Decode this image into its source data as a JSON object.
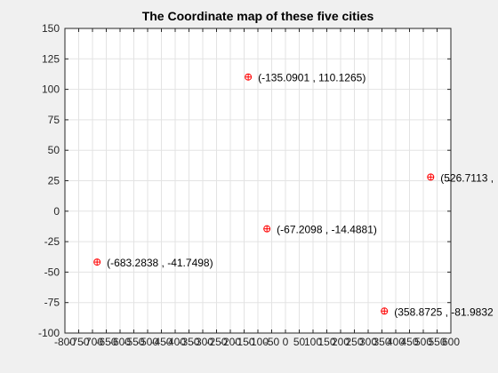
{
  "chart_data": {
    "type": "scatter",
    "title": "The Coordinate map of these five cities",
    "xlabel": "",
    "ylabel": "",
    "xlim": [
      -800,
      600
    ],
    "ylim": [
      -100,
      150
    ],
    "grid": true,
    "x_ticks": [
      -800,
      -750,
      -700,
      -650,
      -600,
      -550,
      -500,
      -450,
      -400,
      -350,
      -300,
      -250,
      -200,
      -150,
      -100,
      -50,
      0,
      50,
      100,
      150,
      200,
      250,
      300,
      350,
      400,
      450,
      500,
      550,
      600
    ],
    "x_tick_labels": [
      "-800",
      "-750",
      "-700",
      "-650",
      "-600",
      "-550",
      "-500",
      "-450",
      "-400",
      "-350",
      "-300",
      "-250",
      "-200",
      "-150",
      "-100",
      "-50",
      "0",
      "50",
      "100",
      "150",
      "200",
      "250",
      "300",
      "350",
      "400",
      "450",
      "500",
      "550",
      "600"
    ],
    "y_ticks": [
      -100,
      -75,
      -50,
      -25,
      0,
      25,
      50,
      75,
      100,
      125,
      150
    ],
    "y_tick_labels": [
      "-100",
      "-75",
      "-50",
      "-25",
      "0",
      "25",
      "50",
      "75",
      "100",
      "125",
      "150"
    ],
    "marker_color": "#ff0000",
    "marker": "circle-plus",
    "points": [
      {
        "x": -135.0901,
        "y": 110.1265,
        "label": "(-135.0901 , 110.1265)"
      },
      {
        "x": 526.7113,
        "y": 28.0,
        "label": "(526.7113 ,"
      },
      {
        "x": -67.2098,
        "y": -14.4881,
        "label": "(-67.2098 , -14.4881)"
      },
      {
        "x": -683.2838,
        "y": -41.7498,
        "label": "(-683.2838 , -41.7498)"
      },
      {
        "x": 358.8725,
        "y": -81.9832,
        "label": "(358.8725 , -81.9832"
      }
    ]
  }
}
